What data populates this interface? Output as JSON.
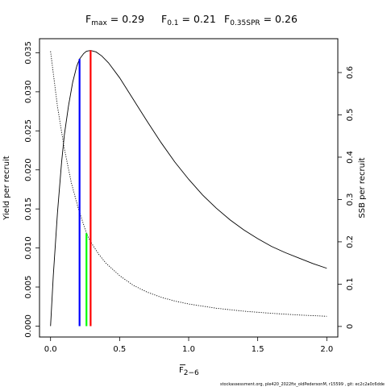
{
  "chart_data": {
    "type": "line",
    "title": {
      "fmax": {
        "main": "F",
        "sub": "max",
        "value": " = 0.29"
      },
      "f01": {
        "main": "F",
        "sub": "0.1",
        "value": " = 0.21"
      },
      "f035spr": {
        "main": "F",
        "sub": "0.35SPR",
        "value": " = 0.26"
      }
    },
    "xlabel": {
      "main": "F",
      "sub": "2−6"
    },
    "ylabel_left": "Yield per recruit",
    "ylabel_right": "SSB per recruit",
    "xlim": [
      -0.08,
      2.08
    ],
    "ylim_left": [
      -0.0014,
      0.0368
    ],
    "ylim_right": [
      -0.025,
      0.68
    ],
    "x_ticks": [
      0,
      0.5,
      1,
      1.5,
      2
    ],
    "x_tick_labels": [
      "0.0",
      "0.5",
      "1.0",
      "1.5",
      "2.0"
    ],
    "y_left_ticks": [
      0,
      0.005,
      0.01,
      0.015,
      0.02,
      0.025,
      0.03,
      0.035
    ],
    "y_left_tick_labels": [
      "0.000",
      "0.005",
      "0.010",
      "0.015",
      "0.020",
      "0.025",
      "0.030",
      "0.035"
    ],
    "y_right_ticks": [
      0,
      0.1,
      0.2,
      0.3,
      0.4,
      0.5,
      0.6
    ],
    "y_right_tick_labels": [
      "0",
      "0.1",
      "0.2",
      "0.3",
      "0.4",
      "0.5",
      "0.6"
    ],
    "series": [
      {
        "axis": "left",
        "style": "solid",
        "x": [
          0,
          0.02,
          0.05,
          0.08,
          0.1,
          0.13,
          0.16,
          0.19,
          0.21,
          0.24,
          0.26,
          0.29,
          0.33,
          0.37,
          0.42,
          0.5,
          0.6,
          0.7,
          0.8,
          0.9,
          1.0,
          1.1,
          1.2,
          1.3,
          1.4,
          1.5,
          1.6,
          1.7,
          1.8,
          1.9,
          2.0
        ],
        "y": [
          0,
          0.0065,
          0.0145,
          0.021,
          0.0245,
          0.0282,
          0.0312,
          0.0333,
          0.0342,
          0.0349,
          0.0352,
          0.0353,
          0.0351,
          0.0346,
          0.0337,
          0.0318,
          0.029,
          0.0262,
          0.0235,
          0.021,
          0.0188,
          0.0168,
          0.0151,
          0.0136,
          0.0123,
          0.0112,
          0.0102,
          0.0094,
          0.0087,
          0.008,
          0.0074
        ]
      },
      {
        "axis": "right",
        "style": "dotted",
        "x": [
          0,
          0.05,
          0.1,
          0.15,
          0.2,
          0.21,
          0.26,
          0.29,
          0.35,
          0.4,
          0.5,
          0.6,
          0.7,
          0.8,
          0.9,
          1.0,
          1.2,
          1.4,
          1.6,
          1.8,
          2.0
        ],
        "y": [
          0.65,
          0.52,
          0.42,
          0.34,
          0.28,
          0.27,
          0.22,
          0.2,
          0.17,
          0.15,
          0.12,
          0.097,
          0.081,
          0.069,
          0.06,
          0.053,
          0.043,
          0.036,
          0.031,
          0.027,
          0.024
        ]
      }
    ],
    "reference_lines": [
      {
        "label": "F0.1",
        "x": 0.21,
        "y_top": 0.0342,
        "axis": "left",
        "color": "#0000ff"
      },
      {
        "label": "F0.35SPR",
        "x": 0.26,
        "y_top": 0.22,
        "axis": "right",
        "color": "#00ff00"
      },
      {
        "label": "Fmax",
        "x": 0.29,
        "y_top": 0.0353,
        "axis": "left",
        "color": "#ff0000"
      }
    ]
  },
  "footer": "stockassessment.org, ple420_2022fix_oldPedersonM, r15599 , git: ec2c2a0c6dde"
}
